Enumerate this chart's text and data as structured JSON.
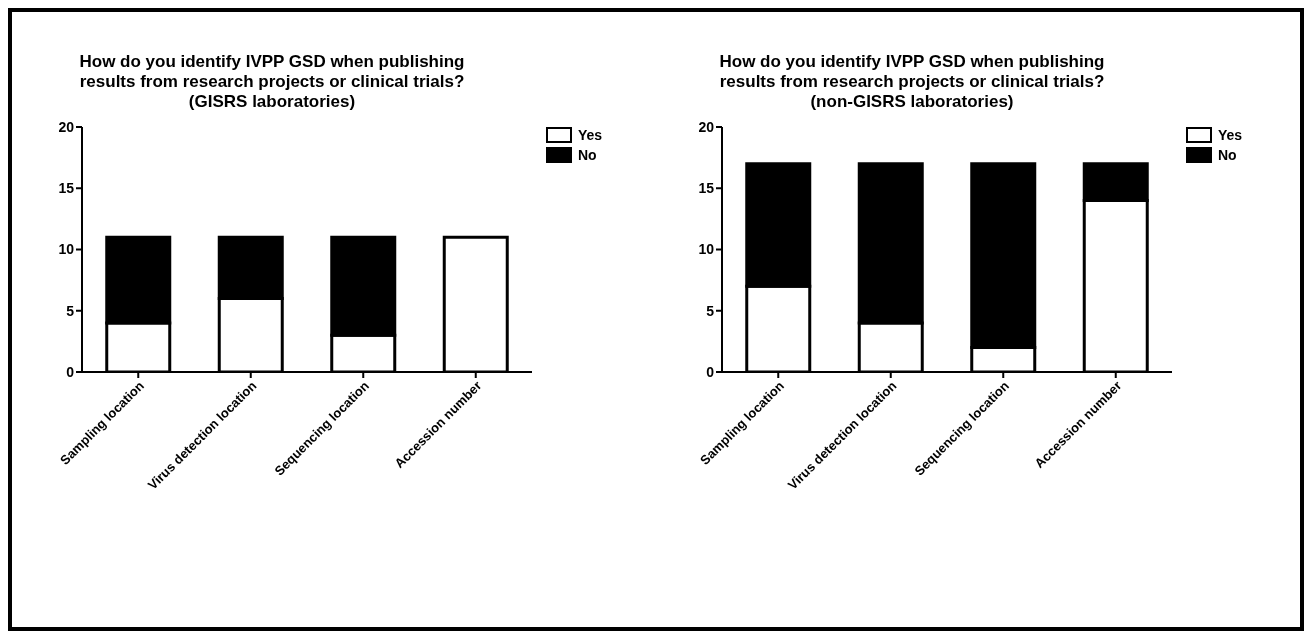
{
  "chart_data": [
    {
      "type": "bar",
      "title": "How do you identify IVPP GSD when publishing results from research projects or clinical trials?",
      "subtitle": "(GISRS laboratories)",
      "categories": [
        "Sampling location",
        "Virus detection location",
        "Sequencing location",
        "Accession number"
      ],
      "stacked": true,
      "series": [
        {
          "name": "Yes",
          "color": "#ffffff",
          "values": [
            4,
            6,
            3,
            11
          ]
        },
        {
          "name": "No",
          "color": "#000000",
          "values": [
            7,
            5,
            8,
            0
          ]
        }
      ],
      "ylim": [
        0,
        20
      ],
      "yticks": [
        0,
        5,
        10,
        15,
        20
      ],
      "grid": false,
      "legend": "top right"
    },
    {
      "type": "bar",
      "title": "How do you identify IVPP GSD when publishing results from research projects or clinical trials?",
      "subtitle": "(non-GISRS laboratories)",
      "categories": [
        "Sampling location",
        "Virus detection location",
        "Sequencing location",
        "Accession number"
      ],
      "stacked": true,
      "series": [
        {
          "name": "Yes",
          "color": "#ffffff",
          "values": [
            7,
            4,
            2,
            14
          ]
        },
        {
          "name": "No",
          "color": "#000000",
          "values": [
            10,
            13,
            15,
            3
          ]
        }
      ],
      "ylim": [
        0,
        20
      ],
      "yticks": [
        0,
        5,
        10,
        15,
        20
      ],
      "grid": false,
      "legend": "top right"
    }
  ]
}
